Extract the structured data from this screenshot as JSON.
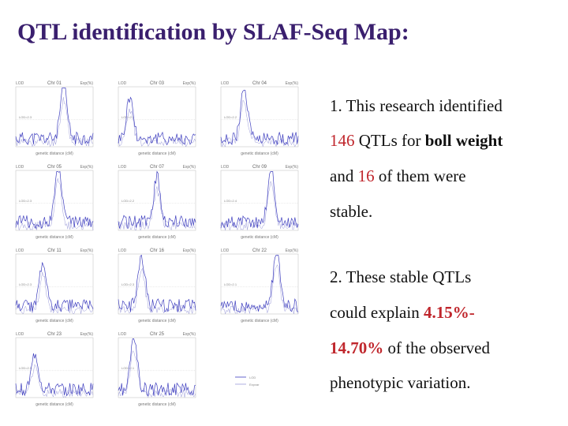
{
  "title": "QTL identification by SLAF-Seq Map:",
  "figure": {
    "panels": [
      {
        "chr": "Chr 01",
        "lod_label": "LOD=2.3",
        "xlabel": "genetic distance (cM)"
      },
      {
        "chr": "Chr 03",
        "lod_label": "LOD=2.1",
        "xlabel": "genetic distance (cM)"
      },
      {
        "chr": "Chr 04",
        "lod_label": "LOD=2.2",
        "xlabel": "genetic distance (cM)"
      },
      {
        "chr": "Chr 05",
        "lod_label": "LOD=2.3",
        "xlabel": "genetic distance (cM)"
      },
      {
        "chr": "Chr 07",
        "lod_label": "LOD=2.2",
        "xlabel": "genetic distance (cM)"
      },
      {
        "chr": "Chr 09",
        "lod_label": "LOD=2.4",
        "xlabel": "genetic distance (cM)"
      },
      {
        "chr": "Chr 11",
        "lod_label": "LOD=2.3",
        "xlabel": "genetic distance (cM)"
      },
      {
        "chr": "Chr 16",
        "lod_label": "LOD=2.3",
        "xlabel": "genetic distance (cM)"
      },
      {
        "chr": "Chr 22",
        "lod_label": "LOD=2.1",
        "xlabel": "genetic distance (cM)"
      },
      {
        "chr": "Chr 23",
        "lod_label": "LOD=2.0",
        "xlabel": "genetic distance (cM)"
      },
      {
        "chr": "Chr 25",
        "lod_label": "LOD=2.1",
        "xlabel": "genetic distance (cM)"
      }
    ],
    "left_axis": "LOD",
    "right_axis": "Exp(%)",
    "legend": [
      "LOD",
      "Expvar"
    ]
  },
  "text": {
    "line1": "1. This research identified",
    "line2_num": "146",
    "line2_mid": " QTLs for ",
    "line2_bold": "boll weight",
    "line3_a": "and ",
    "line3_num": "16",
    "line3_b": " of them were",
    "line4": "stable.",
    "line5": " 2. These stable QTLs",
    "line6_a": "could explain ",
    "line6_num": "4.15%-",
    "line7_num": "14.70%",
    "line7_b": " of the observed",
    "line8": "phenotypic variation."
  },
  "colors": {
    "title": "#3a1f6e",
    "lod_curve": "#3f3fbf",
    "exp_curve": "#9b9bd9",
    "highlight": "#c0272d"
  }
}
